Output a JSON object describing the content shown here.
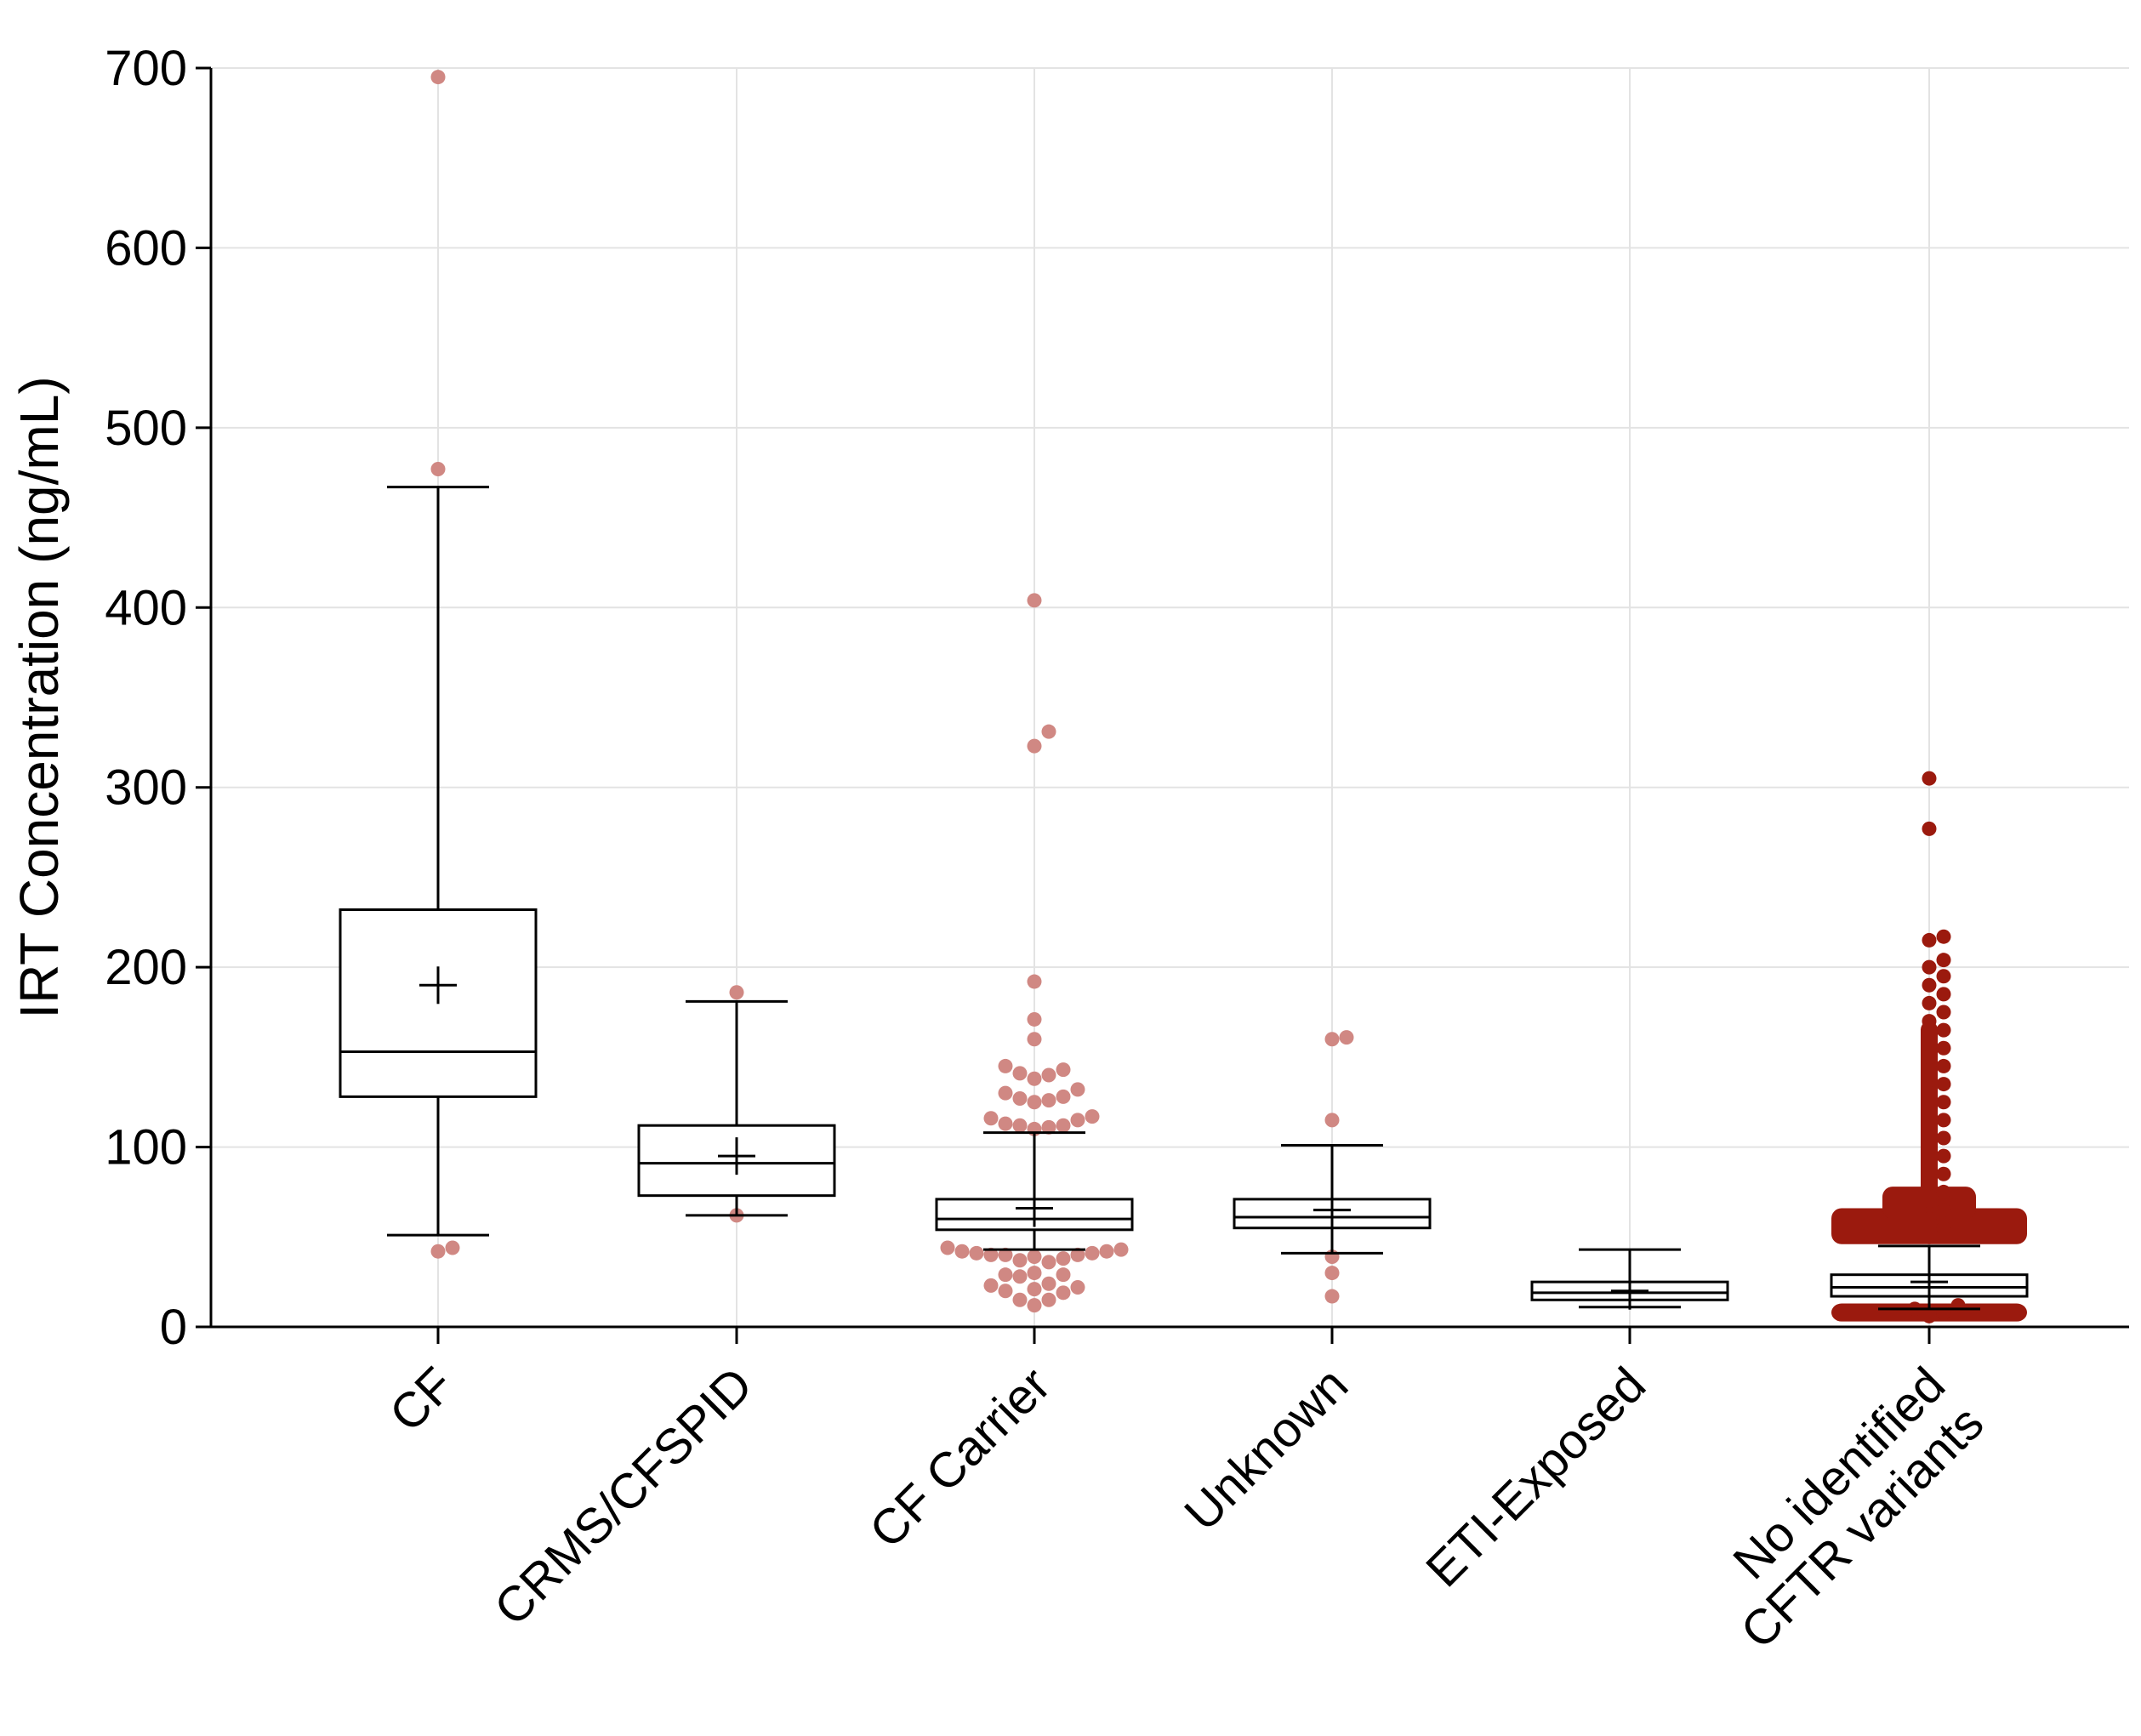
{
  "chart_data": {
    "type": "box",
    "title": "",
    "xlabel": "",
    "ylabel": "IRT Concentration (ng/mL)",
    "ylim": [
      0,
      700
    ],
    "yticks": [
      0,
      100,
      200,
      300,
      400,
      500,
      600,
      700
    ],
    "grid": true,
    "categories": [
      "CF",
      "CRMS/CFSPID",
      "CF Carrier",
      "Unknown",
      "ETI-Exposed",
      "No identified CFTR variants"
    ],
    "category_lines": [
      [
        "CF"
      ],
      [
        "CRMS/CFSPID"
      ],
      [
        "CF Carrier"
      ],
      [
        "Unknown"
      ],
      [
        "ETI-Exposed"
      ],
      [
        "No identified",
        "CFTR variants"
      ]
    ],
    "boxes": [
      {
        "name": "CF",
        "whisker_low": 51,
        "q1": 128,
        "median": 153,
        "q3": 232,
        "whisker_high": 467,
        "mean": 190
      },
      {
        "name": "CRMS/CFSPID",
        "whisker_low": 62,
        "q1": 73,
        "median": 91,
        "q3": 112,
        "whisker_high": 181,
        "mean": 95
      },
      {
        "name": "CF Carrier",
        "whisker_low": 43,
        "q1": 54,
        "median": 60,
        "q3": 71,
        "whisker_high": 108,
        "mean": 66
      },
      {
        "name": "Unknown",
        "whisker_low": 41,
        "q1": 55,
        "median": 61,
        "q3": 71,
        "whisker_high": 101,
        "mean": 65
      },
      {
        "name": "ETI-Exposed",
        "whisker_low": 11,
        "q1": 15,
        "median": 19,
        "q3": 25,
        "whisker_high": 43,
        "mean": 20
      },
      {
        "name": "No identified CFTR variants",
        "whisker_low": 10,
        "q1": 17,
        "median": 22,
        "q3": 29,
        "whisker_high": 45,
        "mean": 25
      }
    ],
    "outliers": [
      {
        "group": "CF",
        "values": [
          695,
          477,
          42,
          44
        ]
      },
      {
        "group": "CRMS/CFSPID",
        "values": [
          186,
          62
        ]
      },
      {
        "group": "CF Carrier",
        "values": [
          404,
          331,
          323,
          192,
          171,
          160,
          145,
          143,
          141,
          140,
          138,
          132,
          130,
          128,
          127,
          126,
          125,
          117,
          116,
          115,
          113,
          112,
          112,
          111,
          110,
          44,
          43,
          42,
          42,
          41,
          41,
          40,
          40,
          40,
          39,
          38,
          37,
          36,
          30,
          29,
          29,
          28,
          24,
          23,
          22,
          21,
          20,
          19,
          15,
          15,
          12
        ]
      },
      {
        "group": "Unknown",
        "values": [
          161,
          160,
          115,
          39,
          30,
          17
        ]
      },
      {
        "group": "No identified CFTR variants",
        "values": [
          305,
          277,
          217,
          215,
          204,
          200,
          195,
          190,
          185,
          180,
          175,
          170,
          165,
          160,
          155,
          150,
          145,
          140,
          135,
          130,
          125,
          120,
          115,
          110,
          105,
          100,
          95,
          90,
          85,
          80,
          75,
          70,
          65,
          60,
          55,
          50,
          12,
          10,
          8,
          6
        ]
      }
    ],
    "colors": {
      "light_outlier": "#d08883",
      "dark_outlier": "#9b1a0e",
      "box_stroke": "#000000",
      "grid": "#e3e3e3"
    }
  }
}
